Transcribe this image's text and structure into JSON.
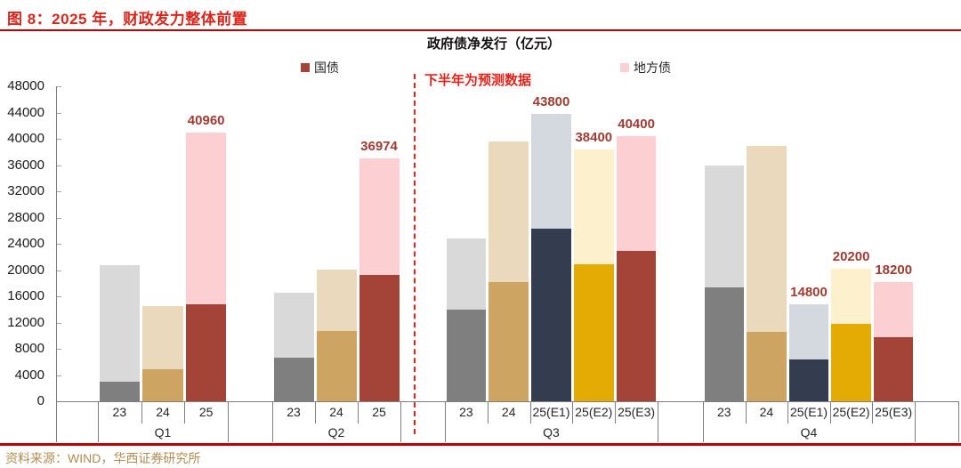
{
  "figure": {
    "title": "图 8：2025 年，财政发力整体前置",
    "source": "资料来源：WIND，华西证券研究所"
  },
  "chart_data": {
    "type": "bar",
    "stacked": true,
    "title": "政府债净发行（亿元）",
    "series_names": [
      "国债",
      "地方债"
    ],
    "annotation": "下半年为预测数据",
    "ylim": [
      0,
      48000
    ],
    "ytick_step": 4000,
    "grid": false,
    "legend_position": "top",
    "unit": "亿元",
    "palette": {
      "23": {
        "guozhai": "#7f7f7f",
        "difangzhai": "#d9d9d9"
      },
      "24": {
        "guozhai": "#cda461",
        "difangzhai": "#ead9bd"
      },
      "25": {
        "guozhai": "#a44438",
        "difangzhai": "#fccfd2"
      },
      "25(E1)": {
        "guozhai": "#333d4f",
        "difangzhai": "#d4d9e0"
      },
      "25(E2)": {
        "guozhai": "#e3ab04",
        "difangzhai": "#fdf0cd"
      },
      "25(E3)": {
        "guozhai": "#a44438",
        "difangzhai": "#fccfd2"
      }
    },
    "groups": [
      {
        "quarter": "Q1",
        "bars": [
          {
            "year": "23",
            "guozhai": 3000,
            "difangzhai": 17700,
            "total": 20700
          },
          {
            "year": "24",
            "guozhai": 4900,
            "difangzhai": 9600,
            "total": 14500
          },
          {
            "year": "25",
            "guozhai": 14800,
            "difangzhai": 26160,
            "total": 40960,
            "label": "40960"
          }
        ]
      },
      {
        "quarter": "Q2",
        "bars": [
          {
            "year": "23",
            "guozhai": 6600,
            "difangzhai": 10000,
            "total": 16600
          },
          {
            "year": "24",
            "guozhai": 10700,
            "difangzhai": 9400,
            "total": 20100
          },
          {
            "year": "25",
            "guozhai": 19200,
            "difangzhai": 17774,
            "total": 36974,
            "label": "36974"
          }
        ]
      },
      {
        "quarter": "Q3",
        "bars": [
          {
            "year": "23",
            "guozhai": 13900,
            "difangzhai": 10900,
            "total": 24800
          },
          {
            "year": "24",
            "guozhai": 18200,
            "difangzhai": 21400,
            "total": 39600
          },
          {
            "year": "25(E1)",
            "guozhai": 26300,
            "difangzhai": 17500,
            "total": 43800,
            "label": "43800"
          },
          {
            "year": "25(E2)",
            "guozhai": 20900,
            "difangzhai": 17500,
            "total": 38400,
            "label": "38400"
          },
          {
            "year": "25(E3)",
            "guozhai": 22900,
            "difangzhai": 17500,
            "total": 40400,
            "label": "40400"
          }
        ]
      },
      {
        "quarter": "Q4",
        "bars": [
          {
            "year": "23",
            "guozhai": 17400,
            "difangzhai": 18500,
            "total": 35900
          },
          {
            "year": "24",
            "guozhai": 10600,
            "difangzhai": 28300,
            "total": 38900
          },
          {
            "year": "25(E1)",
            "guozhai": 6400,
            "difangzhai": 8400,
            "total": 14800,
            "label": "14800"
          },
          {
            "year": "25(E2)",
            "guozhai": 11800,
            "difangzhai": 8400,
            "total": 20200,
            "label": "20200"
          },
          {
            "year": "25(E3)",
            "guozhai": 9800,
            "difangzhai": 8400,
            "total": 18200,
            "label": "18200"
          }
        ]
      }
    ],
    "colors": {
      "title_red": "#d9261c",
      "rule_red": "#c00000",
      "annotation_red": "#e0241b",
      "value_label": "#9e3b32",
      "axis_gray": "#7f7f7f",
      "text_dark": "#1a1a1a",
      "source_gold": "#b08c52"
    }
  }
}
